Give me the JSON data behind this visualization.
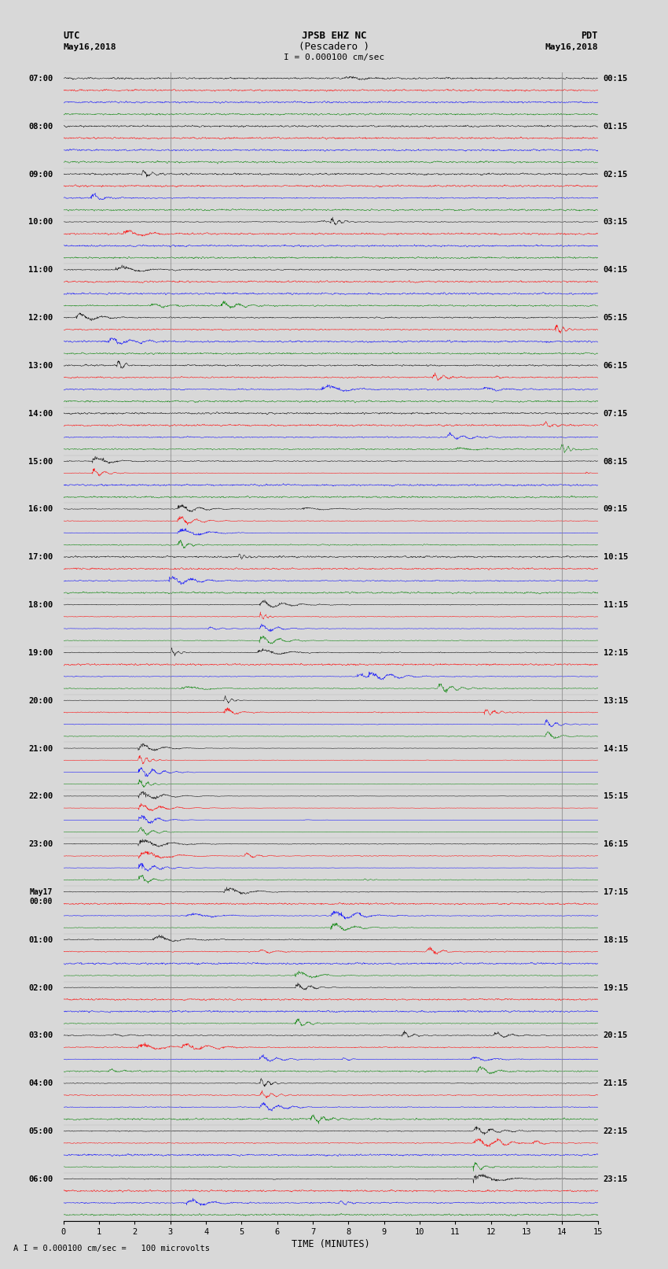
{
  "title_line1": "JPSB EHZ NC",
  "title_line2": "(Pescadero )",
  "scale_label": "I = 0.000100 cm/sec",
  "footer_label": "A I = 0.000100 cm/sec =   100 microvolts",
  "xlabel": "TIME (MINUTES)",
  "left_times": [
    "07:00",
    "08:00",
    "09:00",
    "10:00",
    "11:00",
    "12:00",
    "13:00",
    "14:00",
    "15:00",
    "16:00",
    "17:00",
    "18:00",
    "19:00",
    "20:00",
    "21:00",
    "22:00",
    "23:00",
    "May17\n00:00",
    "01:00",
    "02:00",
    "03:00",
    "04:00",
    "05:00",
    "06:00"
  ],
  "right_times": [
    "00:15",
    "01:15",
    "02:15",
    "03:15",
    "04:15",
    "05:15",
    "06:15",
    "07:15",
    "08:15",
    "09:15",
    "10:15",
    "11:15",
    "12:15",
    "13:15",
    "14:15",
    "15:15",
    "16:15",
    "17:15",
    "18:15",
    "19:15",
    "20:15",
    "21:15",
    "22:15",
    "23:15"
  ],
  "colors": [
    "black",
    "red",
    "blue",
    "green"
  ],
  "n_hour_blocks": 24,
  "traces_per_block": 4,
  "n_samples": 1800,
  "time_xlim": [
    0,
    15
  ],
  "background_color": "#d8d8d8",
  "noise_amplitude": 0.06,
  "seed": 12345,
  "vline_x1": 3.0,
  "vline_x2": 14.0
}
